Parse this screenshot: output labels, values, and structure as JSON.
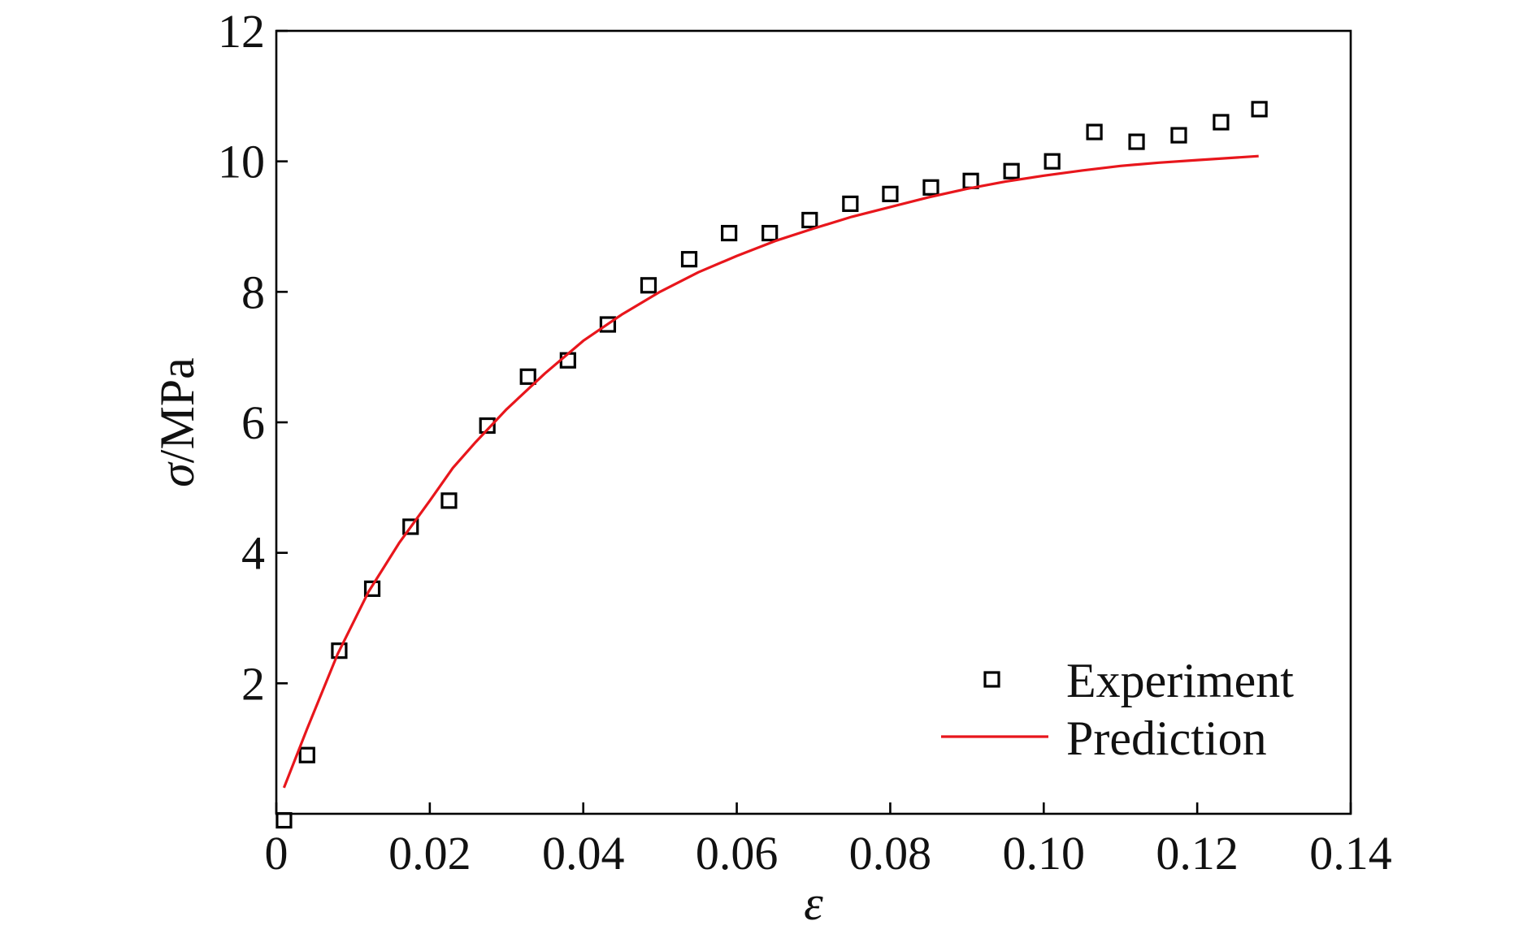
{
  "chart_data": {
    "type": "scatter",
    "title": "",
    "xlabel": "ε",
    "ylabel_symbol": "σ",
    "ylabel_unit": "/MPa",
    "xlim": [
      0,
      0.14
    ],
    "ylim": [
      0,
      12
    ],
    "grid": false,
    "legend_position": "bottom-right",
    "x_ticks": [
      0,
      0.02,
      0.04,
      0.06,
      0.08,
      0.1,
      0.12,
      0.14
    ],
    "x_tick_labels": [
      "0",
      "0.02",
      "0.04",
      "0.06",
      "0.08",
      "0.10",
      "0.12",
      "0.14"
    ],
    "y_ticks": [
      2,
      4,
      6,
      8,
      10,
      12
    ],
    "y_tick_labels": [
      "2",
      "4",
      "6",
      "8",
      "10",
      "12"
    ],
    "series": [
      {
        "name": "Experiment",
        "kind": "scatter",
        "marker": "open-square",
        "color": "#000000",
        "points": [
          [
            0.001,
            -0.1
          ],
          [
            0.004,
            0.9
          ],
          [
            0.0082,
            2.5
          ],
          [
            0.0125,
            3.45
          ],
          [
            0.0175,
            4.4
          ],
          [
            0.0225,
            4.8
          ],
          [
            0.0275,
            5.95
          ],
          [
            0.0328,
            6.7
          ],
          [
            0.038,
            6.95
          ],
          [
            0.0432,
            7.5
          ],
          [
            0.0485,
            8.1
          ],
          [
            0.0538,
            8.5
          ],
          [
            0.059,
            8.9
          ],
          [
            0.0643,
            8.9
          ],
          [
            0.0695,
            9.1
          ],
          [
            0.0748,
            9.35
          ],
          [
            0.08,
            9.5
          ],
          [
            0.0853,
            9.6
          ],
          [
            0.0905,
            9.7
          ],
          [
            0.0958,
            9.85
          ],
          [
            0.1011,
            10.0
          ],
          [
            0.1066,
            10.45
          ],
          [
            0.1121,
            10.3
          ],
          [
            0.1176,
            10.4
          ],
          [
            0.1231,
            10.6
          ],
          [
            0.1281,
            10.8
          ]
        ]
      },
      {
        "name": "Prediction",
        "kind": "line",
        "color": "#e8161c",
        "points": [
          [
            0.001,
            0.4
          ],
          [
            0.004,
            1.3
          ],
          [
            0.008,
            2.45
          ],
          [
            0.012,
            3.4
          ],
          [
            0.016,
            4.15
          ],
          [
            0.02,
            4.8
          ],
          [
            0.023,
            5.3
          ],
          [
            0.026,
            5.7
          ],
          [
            0.03,
            6.2
          ],
          [
            0.035,
            6.75
          ],
          [
            0.04,
            7.25
          ],
          [
            0.045,
            7.65
          ],
          [
            0.05,
            8.0
          ],
          [
            0.055,
            8.3
          ],
          [
            0.06,
            8.55
          ],
          [
            0.065,
            8.78
          ],
          [
            0.07,
            8.97
          ],
          [
            0.075,
            9.15
          ],
          [
            0.08,
            9.3
          ],
          [
            0.085,
            9.45
          ],
          [
            0.09,
            9.58
          ],
          [
            0.095,
            9.69
          ],
          [
            0.1,
            9.78
          ],
          [
            0.105,
            9.86
          ],
          [
            0.11,
            9.93
          ],
          [
            0.115,
            9.98
          ],
          [
            0.12,
            10.02
          ],
          [
            0.128,
            10.08
          ]
        ]
      }
    ]
  }
}
